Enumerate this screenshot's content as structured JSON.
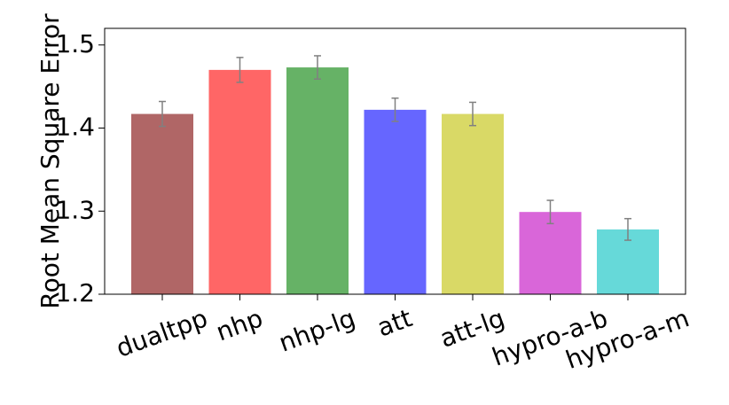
{
  "chart_data": {
    "type": "bar",
    "y_label": "Root Mean Square Error",
    "categories": [
      "dualtpp",
      "nhp",
      "nhp-lg",
      "att",
      "att-lg",
      "hypro-a-b",
      "hypro-a-m"
    ],
    "values": [
      1.417,
      1.47,
      1.473,
      1.422,
      1.417,
      1.299,
      1.278
    ],
    "errors": [
      0.015,
      0.015,
      0.014,
      0.014,
      0.014,
      0.014,
      0.013
    ],
    "colors": [
      "#b06666",
      "#ff6666",
      "#66b266",
      "#6666ff",
      "#d9d966",
      "#d966d9",
      "#66d9d9"
    ],
    "error_color": "#808080",
    "ylim": [
      1.2,
      1.52
    ],
    "yticks": [
      1.2,
      1.3,
      1.4,
      1.5
    ]
  }
}
